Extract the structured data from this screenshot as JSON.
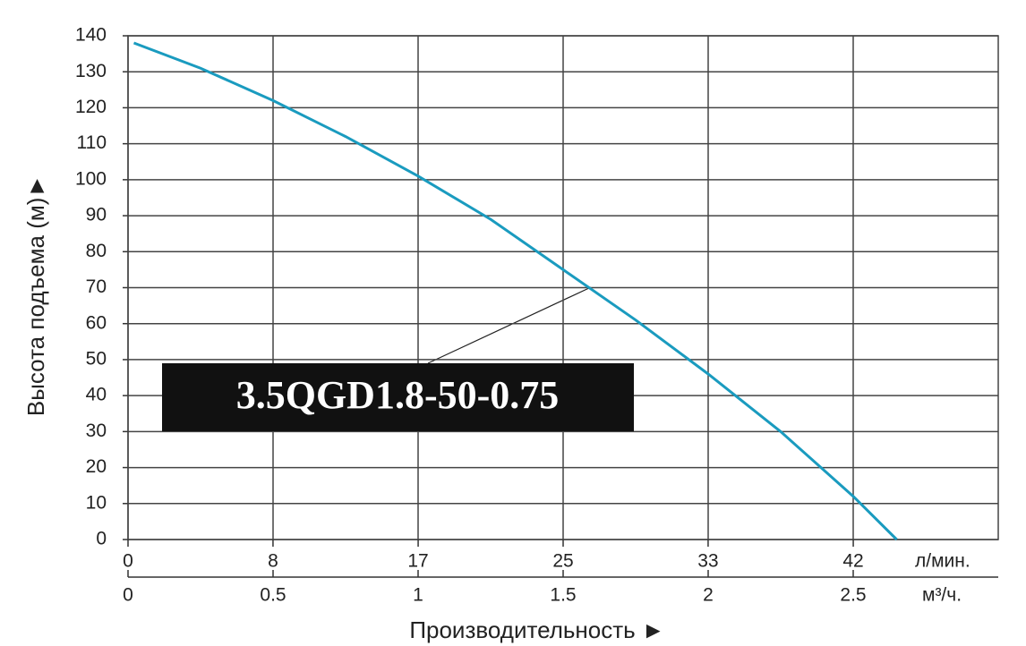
{
  "chart_data": {
    "type": "line",
    "annotation": "3.5QGD1.8-50-0.75",
    "y_label": "Высота подъема (м)►",
    "x_label": "Производительность ►",
    "x_unit": "м³/ч.",
    "x2_unit": "л/мин.",
    "x": [
      0.02,
      0.25,
      0.5,
      0.75,
      1,
      1.25,
      1.5,
      1.75,
      2,
      2.25,
      2.5,
      2.65
    ],
    "values": [
      138,
      131,
      122,
      112,
      101,
      89,
      75,
      61,
      46,
      30,
      12,
      0
    ],
    "color": "#1a9bbf",
    "xlim": [
      0,
      3
    ],
    "xticks": [
      0,
      0.5,
      1,
      1.5,
      2,
      2.5
    ],
    "x2lim": [
      0,
      50
    ],
    "x2ticks": [
      0,
      {
        "value": 8.33,
        "label": "8"
      },
      {
        "value": 16.67,
        "label": "17"
      },
      25,
      {
        "value": 33.33,
        "label": "33"
      },
      {
        "value": 41.67,
        "label": "42"
      }
    ],
    "ylim": [
      0,
      140
    ],
    "yticks": [
      0,
      10,
      20,
      30,
      40,
      50,
      60,
      70,
      80,
      90,
      100,
      110,
      120,
      130,
      140
    ],
    "grid": true
  }
}
